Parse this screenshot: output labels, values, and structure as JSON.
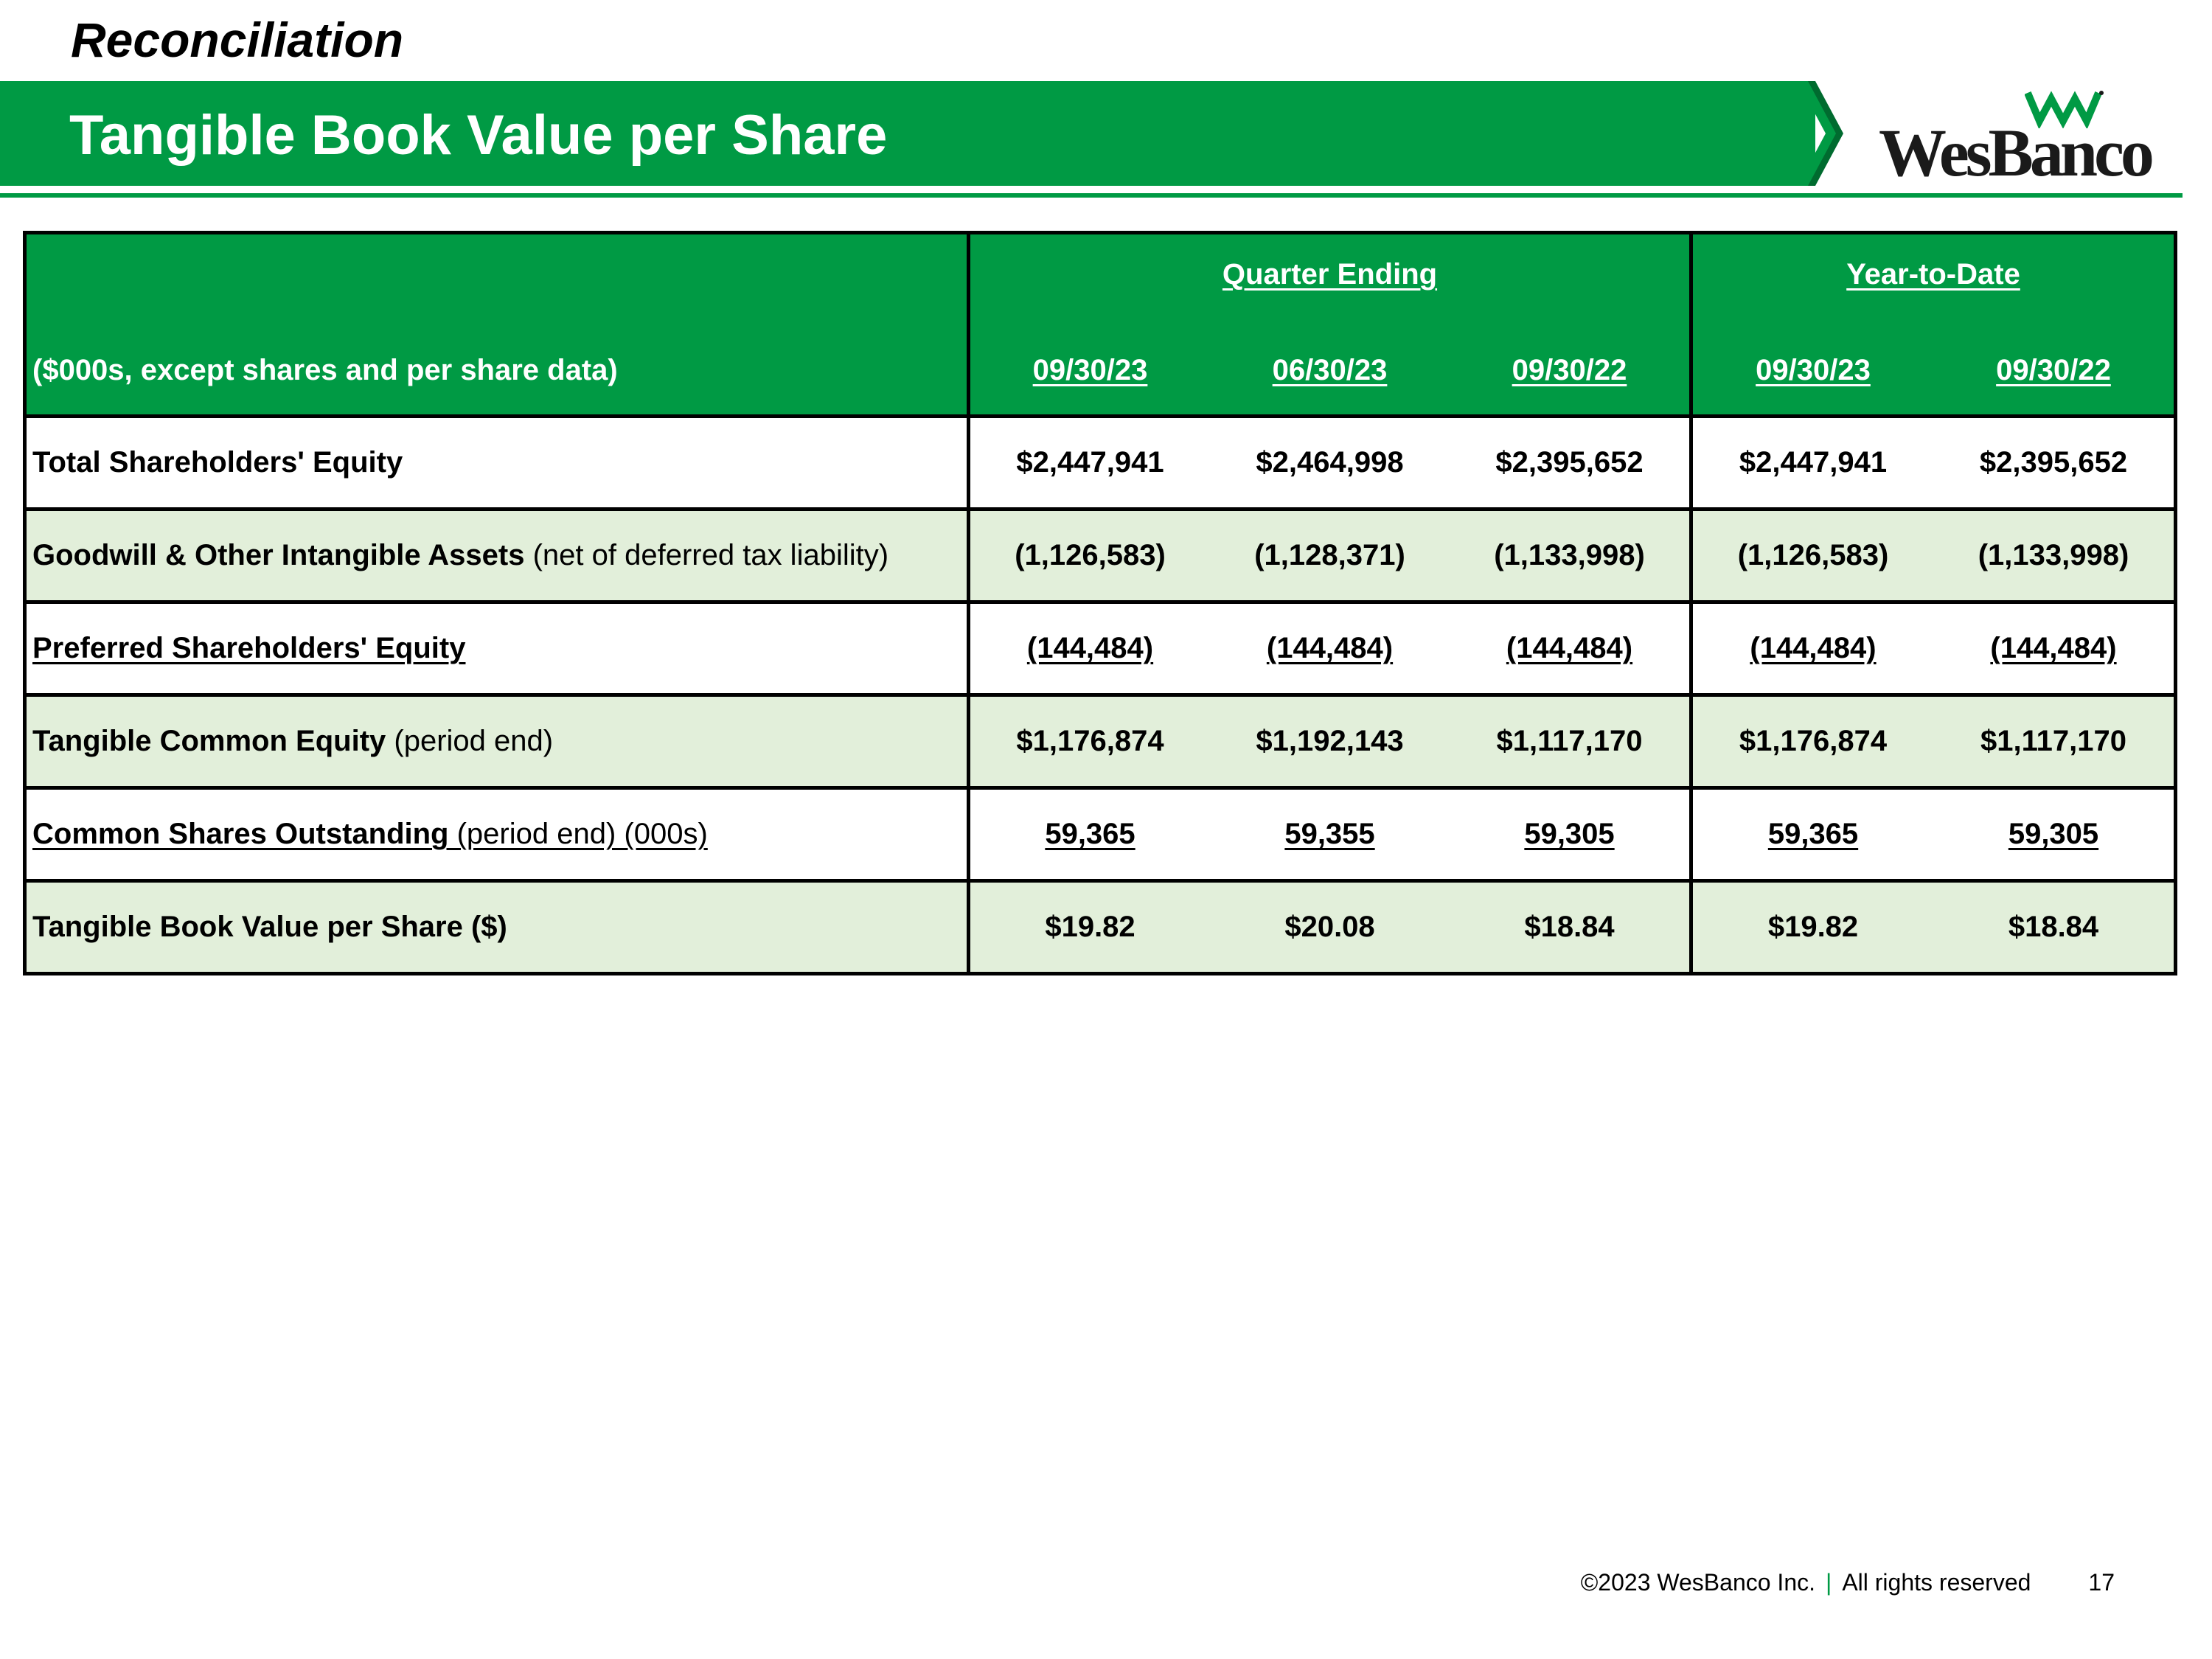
{
  "header": {
    "kicker": "Reconciliation",
    "title": "Tangible Book Value per Share"
  },
  "logo": {
    "text": "WesBanco",
    "brand_color": "#009a44",
    "mark_icon": "wesbanco-w-icon"
  },
  "table": {
    "units_label": "($000s, except shares and per share data)",
    "groups": [
      {
        "label": "Quarter Ending",
        "dates": [
          "09/30/23",
          "06/30/23",
          "09/30/22"
        ]
      },
      {
        "label": "Year-to-Date",
        "dates": [
          "09/30/23",
          "09/30/22"
        ]
      }
    ],
    "rows": [
      {
        "label": "Total Shareholders' Equity",
        "qualifier": "",
        "underline": false,
        "quarter": [
          "$2,447,941",
          "$2,464,998",
          "$2,395,652"
        ],
        "ytd": [
          "$2,447,941",
          "$2,395,652"
        ]
      },
      {
        "label": "Goodwill & Other Intangible Assets",
        "qualifier": " (net of deferred tax liability)",
        "underline": false,
        "quarter": [
          "(1,126,583)",
          "(1,128,371)",
          "(1,133,998)"
        ],
        "ytd": [
          "(1,126,583)",
          "(1,133,998)"
        ]
      },
      {
        "label": "Preferred Shareholders' Equity",
        "qualifier": "",
        "underline": true,
        "quarter": [
          "(144,484)",
          "(144,484)",
          "(144,484)"
        ],
        "ytd": [
          "(144,484)",
          "(144,484)"
        ]
      },
      {
        "label": "Tangible Common Equity",
        "qualifier": " (period end)",
        "underline": false,
        "quarter": [
          "$1,176,874",
          "$1,192,143",
          "$1,117,170"
        ],
        "ytd": [
          "$1,176,874",
          "$1,117,170"
        ]
      },
      {
        "label": "Common Shares Outstanding",
        "qualifier": " (period end) (000s)",
        "underline": true,
        "quarter": [
          "59,365",
          "59,355",
          "59,305"
        ],
        "ytd": [
          "59,365",
          "59,305"
        ]
      },
      {
        "label": "Tangible Book Value per Share ($)",
        "qualifier": "",
        "underline": false,
        "quarter": [
          "$19.82",
          "$20.08",
          "$18.84"
        ],
        "ytd": [
          "$19.82",
          "$18.84"
        ]
      }
    ]
  },
  "footer": {
    "copyright": "©2023 WesBanco Inc.",
    "separator": "|",
    "rights": "All rights reserved",
    "page_number": "17"
  }
}
